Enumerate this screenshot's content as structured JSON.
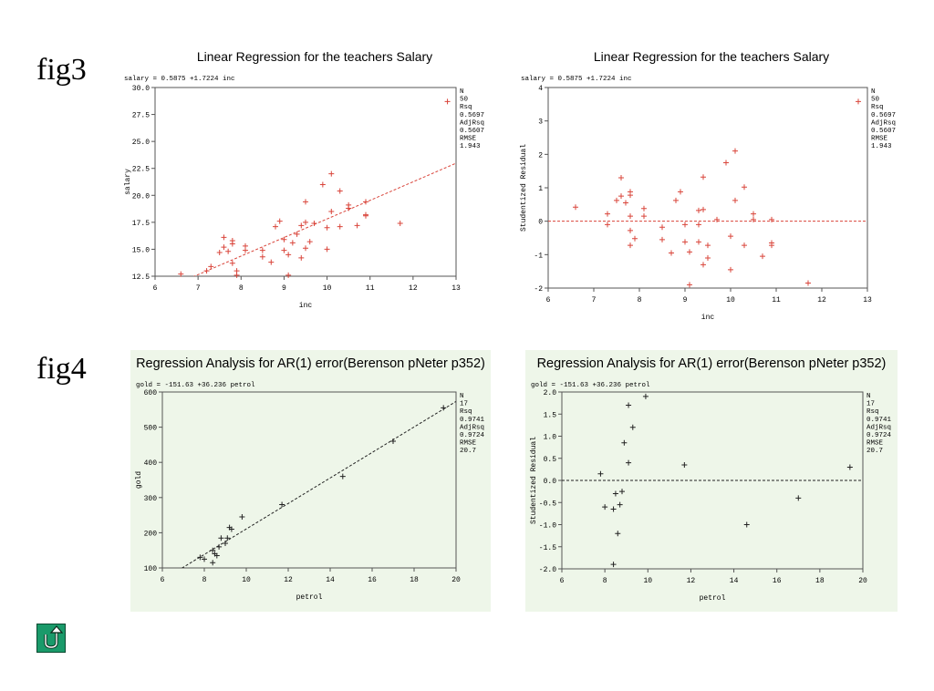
{
  "labels": {
    "fig3": "fig3",
    "fig4": "fig4"
  },
  "buttons": {
    "return_icon": "return-arrow-icon"
  },
  "colors": {
    "fig3_marks": "#d9443a",
    "fig4_marks": "#222222",
    "fig4_background": "#eef6e9",
    "return_button": "#1a9a6a"
  },
  "chart_data": [
    {
      "type": "scatter",
      "title": "Linear Regression for the teachers Salary",
      "equation": "salary = 0.5875 +1.7224 inc",
      "xlabel": "inc",
      "ylabel": "salary",
      "xlim": [
        6,
        13
      ],
      "ylim": [
        12.5,
        30
      ],
      "xticks": [
        "6",
        "7",
        "8",
        "9",
        "10",
        "11",
        "12",
        "13"
      ],
      "yticks": [
        "12.5",
        "15.0",
        "17.5",
        "20.0",
        "22.5",
        "25.0",
        "27.5",
        "30.0"
      ],
      "fit_line": {
        "intercept": 0.5875,
        "slope": 1.7224
      },
      "stats": [
        "N",
        "50",
        "Rsq",
        "0.5697",
        "AdjRsq",
        "0.5607",
        "RMSE",
        "1.943"
      ],
      "points": [
        [
          6.6,
          12.7
        ],
        [
          7.2,
          13.0
        ],
        [
          7.3,
          13.4
        ],
        [
          7.5,
          14.7
        ],
        [
          7.6,
          15.2
        ],
        [
          7.6,
          16.1
        ],
        [
          7.7,
          14.8
        ],
        [
          7.8,
          15.5
        ],
        [
          7.8,
          15.8
        ],
        [
          7.8,
          13.7
        ],
        [
          7.9,
          13.0
        ],
        [
          7.9,
          12.6
        ],
        [
          8.1,
          14.9
        ],
        [
          8.1,
          15.3
        ],
        [
          8.5,
          14.3
        ],
        [
          8.5,
          14.9
        ],
        [
          8.7,
          13.8
        ],
        [
          8.8,
          17.1
        ],
        [
          8.9,
          17.6
        ],
        [
          9.0,
          15.9
        ],
        [
          9.0,
          14.9
        ],
        [
          9.1,
          12.6
        ],
        [
          9.1,
          14.5
        ],
        [
          9.2,
          15.6
        ],
        [
          9.3,
          16.4
        ],
        [
          9.4,
          14.2
        ],
        [
          9.4,
          17.2
        ],
        [
          9.5,
          19.4
        ],
        [
          9.5,
          15.1
        ],
        [
          9.5,
          17.5
        ],
        [
          9.6,
          15.7
        ],
        [
          9.7,
          17.4
        ],
        [
          9.9,
          21.0
        ],
        [
          10.0,
          15.0
        ],
        [
          10.0,
          17.0
        ],
        [
          10.1,
          22.0
        ],
        [
          10.1,
          18.5
        ],
        [
          10.3,
          17.1
        ],
        [
          10.3,
          20.4
        ],
        [
          10.5,
          18.8
        ],
        [
          10.5,
          19.1
        ],
        [
          10.7,
          17.2
        ],
        [
          10.9,
          19.4
        ],
        [
          10.9,
          18.1
        ],
        [
          10.9,
          18.2
        ],
        [
          11.7,
          17.4
        ],
        [
          12.8,
          28.7
        ]
      ]
    },
    {
      "type": "scatter",
      "title": "Linear Regression for the teachers Salary",
      "equation": "salary = 0.5875 +1.7224 inc",
      "xlabel": "inc",
      "ylabel": "Studentized Residual",
      "xlim": [
        6,
        13
      ],
      "ylim": [
        -2,
        4
      ],
      "xticks": [
        "6",
        "7",
        "8",
        "9",
        "10",
        "11",
        "12",
        "13"
      ],
      "yticks": [
        "-2",
        "-1",
        "0",
        "1",
        "2",
        "3",
        "4"
      ],
      "reference_line": 0,
      "stats": [
        "N",
        "50",
        "Rsq",
        "0.5697",
        "AdjRsq",
        "0.5607",
        "RMSE",
        "1.943"
      ],
      "points": [
        [
          6.6,
          0.42
        ],
        [
          7.3,
          0.22
        ],
        [
          7.3,
          -0.1
        ],
        [
          7.5,
          0.62
        ],
        [
          7.6,
          1.3
        ],
        [
          7.6,
          0.75
        ],
        [
          7.7,
          0.55
        ],
        [
          7.8,
          0.88
        ],
        [
          7.8,
          0.78
        ],
        [
          7.8,
          0.15
        ],
        [
          7.8,
          -0.28
        ],
        [
          7.8,
          -0.72
        ],
        [
          7.9,
          -0.52
        ],
        [
          8.1,
          0.38
        ],
        [
          8.1,
          0.15
        ],
        [
          8.5,
          -0.18
        ],
        [
          8.5,
          -0.55
        ],
        [
          8.7,
          -0.95
        ],
        [
          8.8,
          0.62
        ],
        [
          8.9,
          0.88
        ],
        [
          9.0,
          -0.1
        ],
        [
          9.0,
          -0.62
        ],
        [
          9.1,
          -1.9
        ],
        [
          9.1,
          -0.92
        ],
        [
          9.3,
          0.32
        ],
        [
          9.3,
          -0.1
        ],
        [
          9.3,
          -0.62
        ],
        [
          9.4,
          0.35
        ],
        [
          9.4,
          1.32
        ],
        [
          9.4,
          -1.3
        ],
        [
          9.5,
          -0.72
        ],
        [
          9.5,
          -1.1
        ],
        [
          9.7,
          0.05
        ],
        [
          9.9,
          1.75
        ],
        [
          10.0,
          -0.45
        ],
        [
          10.0,
          -1.45
        ],
        [
          10.1,
          2.1
        ],
        [
          10.1,
          0.62
        ],
        [
          10.3,
          1.02
        ],
        [
          10.3,
          -0.72
        ],
        [
          10.5,
          0.22
        ],
        [
          10.5,
          0.05
        ],
        [
          10.7,
          -1.05
        ],
        [
          10.9,
          -0.65
        ],
        [
          10.9,
          -0.72
        ],
        [
          10.9,
          0.05
        ],
        [
          11.7,
          -1.85
        ],
        [
          12.8,
          3.58
        ]
      ]
    },
    {
      "type": "scatter",
      "title": "Regression Analysis for AR(1) error(Berenson pNeter p352)",
      "equation": "gold = -151.63 +36.236 petrol",
      "xlabel": "petrol",
      "ylabel": "gold",
      "xlim": [
        6,
        20
      ],
      "ylim": [
        100,
        600
      ],
      "xticks": [
        "6",
        "8",
        "10",
        "12",
        "14",
        "16",
        "18",
        "20"
      ],
      "yticks": [
        "100",
        "200",
        "300",
        "400",
        "500",
        "600"
      ],
      "fit_line": {
        "intercept": -151.63,
        "slope": 36.236
      },
      "stats": [
        "N",
        "17",
        "Rsq",
        "0.9741",
        "AdjRsq",
        "0.9724",
        "RMSE",
        "20.7"
      ],
      "points": [
        [
          7.8,
          130
        ],
        [
          8.0,
          125
        ],
        [
          8.4,
          115
        ],
        [
          8.4,
          150
        ],
        [
          8.5,
          140
        ],
        [
          8.6,
          135
        ],
        [
          8.7,
          160
        ],
        [
          8.8,
          185
        ],
        [
          9.0,
          170
        ],
        [
          9.1,
          185
        ],
        [
          9.2,
          215
        ],
        [
          9.3,
          210
        ],
        [
          9.8,
          245
        ],
        [
          11.7,
          280
        ],
        [
          14.6,
          360
        ],
        [
          17.0,
          460
        ],
        [
          19.4,
          555
        ]
      ]
    },
    {
      "type": "scatter",
      "title": "Regression Analysis for AR(1) error(Berenson pNeter p352)",
      "equation": "gold = -151.63 +36.236 petrol",
      "xlabel": "petrol",
      "ylabel": "Studentized Residual",
      "xlim": [
        6,
        20
      ],
      "ylim": [
        -2,
        2
      ],
      "xticks": [
        "6",
        "8",
        "10",
        "12",
        "14",
        "16",
        "18",
        "20"
      ],
      "yticks": [
        "-2.0",
        "-1.5",
        "-1.0",
        "-0.5",
        "0.0",
        "0.5",
        "1.0",
        "1.5",
        "2.0"
      ],
      "reference_line": 0,
      "stats": [
        "N",
        "17",
        "Rsq",
        "0.9741",
        "AdjRsq",
        "0.9724",
        "RMSE",
        "20.7"
      ],
      "points": [
        [
          7.8,
          0.15
        ],
        [
          8.0,
          -0.6
        ],
        [
          8.4,
          -0.65
        ],
        [
          8.4,
          -1.9
        ],
        [
          8.5,
          -0.3
        ],
        [
          8.6,
          -1.2
        ],
        [
          8.7,
          -0.55
        ],
        [
          8.8,
          -0.25
        ],
        [
          8.9,
          0.85
        ],
        [
          9.1,
          0.4
        ],
        [
          9.1,
          1.7
        ],
        [
          9.3,
          1.2
        ],
        [
          9.9,
          1.9
        ],
        [
          11.7,
          0.35
        ],
        [
          14.6,
          -1.0
        ],
        [
          17.0,
          -0.4
        ],
        [
          19.4,
          0.3
        ]
      ]
    }
  ]
}
